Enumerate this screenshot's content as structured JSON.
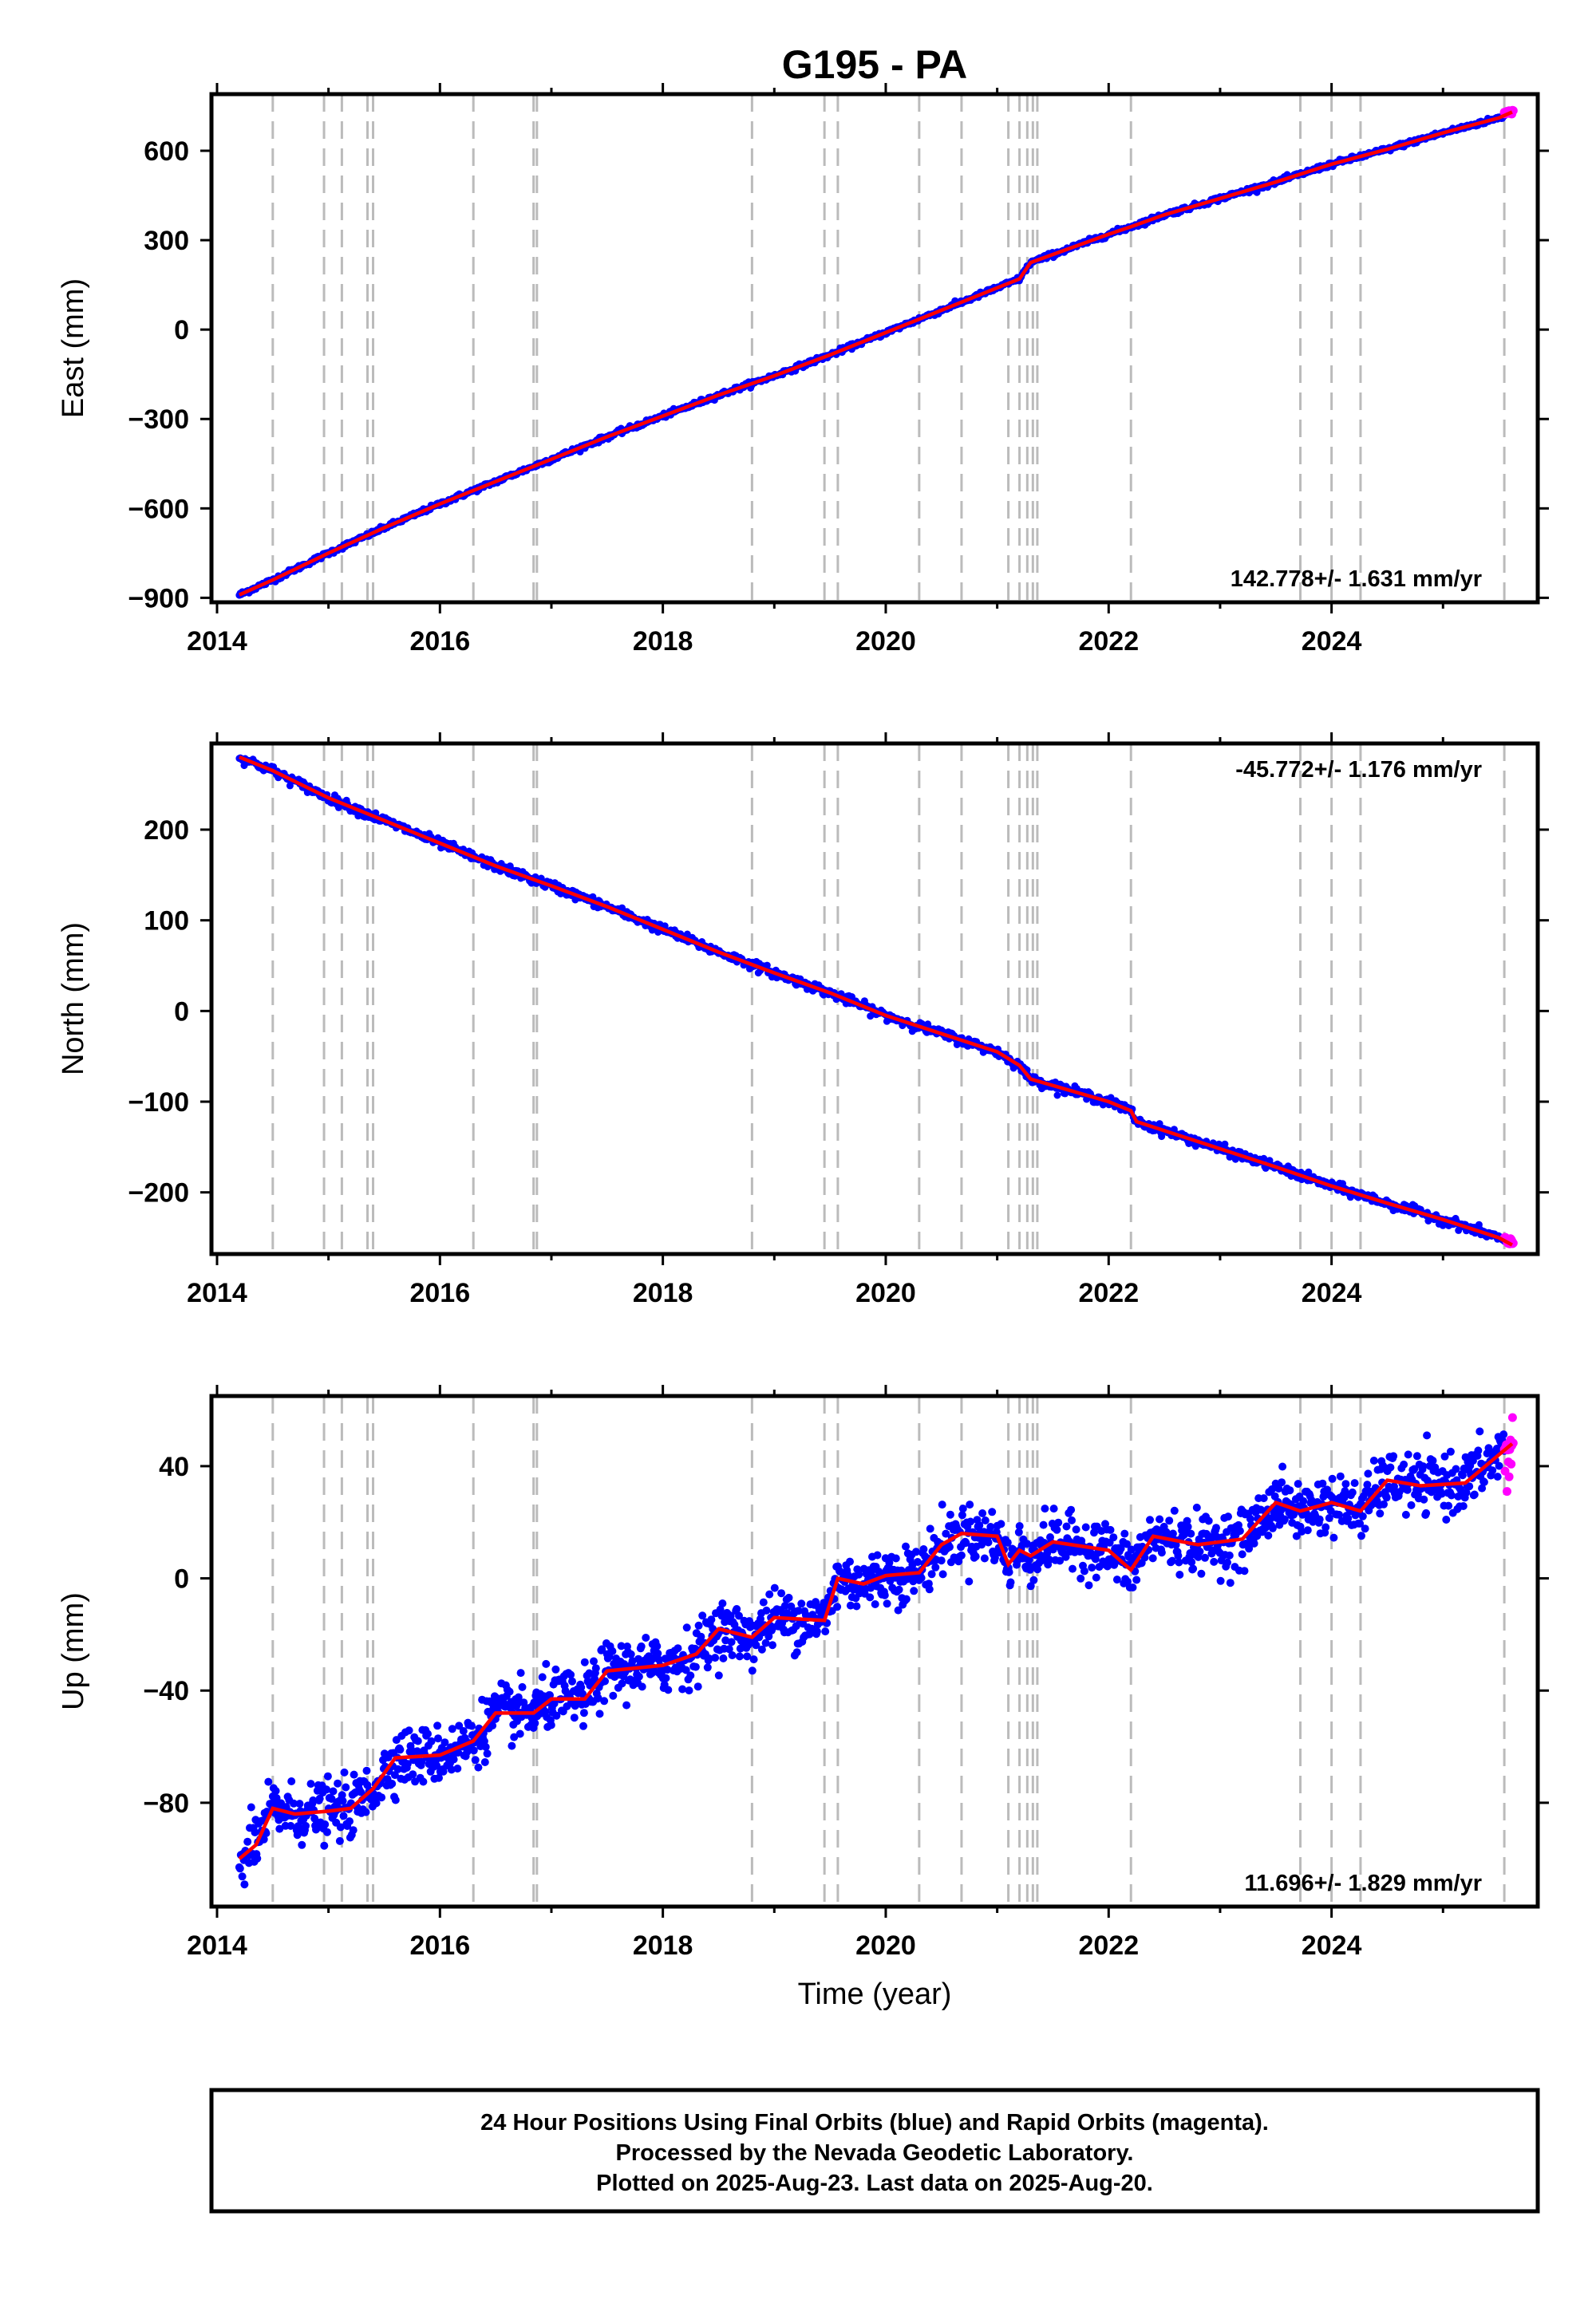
{
  "title": "G195 - PA",
  "xlabel": "Time (year)",
  "footer": {
    "line1": "24 Hour Positions Using Final Orbits (blue) and Rapid Orbits (magenta).",
    "line2": "Processed by the Nevada Geodetic Laboratory.",
    "line3": "Plotted on 2025-Aug-23. Last data on 2025-Aug-20."
  },
  "colors": {
    "final": "#0000ff",
    "rapid": "#ff00ff",
    "model": "#ff0000",
    "event_lines": "#bbbbbb",
    "frame": "#000000"
  },
  "chart_data": [
    {
      "type": "scatter",
      "name": "east",
      "ylabel": "East (mm)",
      "rate_label": "142.778+/- 1.631 mm/yr",
      "xlim": [
        2013.95,
        2025.85
      ],
      "ylim": [
        -915,
        790
      ],
      "xticks": [
        2014,
        2016,
        2018,
        2020,
        2022,
        2024
      ],
      "yticks": [
        -900,
        -600,
        -300,
        0,
        300,
        600
      ],
      "ytick_labels": [
        "−900",
        "−600",
        "−300",
        "0",
        "300",
        "600"
      ],
      "event_lines": [
        2014.5,
        2014.96,
        2015.12,
        2015.35,
        2015.4,
        2016.3,
        2016.84,
        2016.87,
        2018.8,
        2019.45,
        2019.57,
        2020.3,
        2020.68,
        2021.1,
        2021.2,
        2021.27,
        2021.32,
        2021.36,
        2022.2,
        2023.72,
        2024.0,
        2024.26,
        2025.55
      ],
      "model": {
        "x": [
          2014.2,
          2014.5,
          2015.0,
          2015.5,
          2016.0,
          2016.5,
          2017.0,
          2017.5,
          2018.0,
          2018.5,
          2019.0,
          2019.5,
          2020.0,
          2020.5,
          2021.0,
          2021.2,
          2021.3,
          2022.0,
          2022.2,
          2022.5,
          2023.0,
          2023.5,
          2024.0,
          2024.5,
          2025.0,
          2025.5,
          2025.62
        ],
        "y": [
          -890,
          -840,
          -750,
          -665,
          -585,
          -510,
          -435,
          -360,
          -290,
          -220,
          -155,
          -85,
          -10,
          65,
          140,
          170,
          225,
          320,
          345,
          385,
          440,
          495,
          555,
          605,
          660,
          710,
          730
        ]
      },
      "noise_sd": 4,
      "rapid": {
        "x0": 2025.55,
        "x1": 2025.63,
        "y": 730,
        "spread": 5
      }
    },
    {
      "type": "scatter",
      "name": "north",
      "ylabel": "North (mm)",
      "rate_label": "-45.772+/- 1.176 mm/yr",
      "xlim": [
        2013.95,
        2025.85
      ],
      "ylim": [
        -268,
        295
      ],
      "xticks": [
        2014,
        2016,
        2018,
        2020,
        2022,
        2024
      ],
      "yticks": [
        -200,
        -100,
        0,
        100,
        200
      ],
      "ytick_labels": [
        "−200",
        "−100",
        "0",
        "100",
        "200"
      ],
      "event_lines": [
        2014.5,
        2014.96,
        2015.12,
        2015.35,
        2015.4,
        2016.3,
        2016.84,
        2016.87,
        2018.8,
        2019.45,
        2019.57,
        2020.3,
        2020.68,
        2021.1,
        2021.2,
        2021.27,
        2021.32,
        2021.36,
        2022.2,
        2023.72,
        2024.0,
        2024.26,
        2025.55
      ],
      "model": {
        "x": [
          2014.2,
          2014.5,
          2015.0,
          2015.5,
          2016.0,
          2016.5,
          2017.0,
          2017.5,
          2018.0,
          2018.5,
          2019.0,
          2019.5,
          2020.0,
          2020.5,
          2021.0,
          2021.2,
          2021.3,
          2022.0,
          2022.2,
          2022.25,
          2022.5,
          2023.0,
          2023.5,
          2024.0,
          2024.5,
          2025.0,
          2025.5,
          2025.62
        ],
        "y": [
          280,
          265,
          235,
          210,
          185,
          160,
          138,
          115,
          90,
          65,
          42,
          20,
          -5,
          -25,
          -45,
          -60,
          -75,
          -100,
          -110,
          -122,
          -132,
          -152,
          -172,
          -193,
          -212,
          -230,
          -250,
          -258
        ]
      },
      "noise_sd": 2.5,
      "rapid": {
        "x0": 2025.55,
        "x1": 2025.63,
        "y": -255,
        "spread": 3
      }
    },
    {
      "type": "scatter",
      "name": "up",
      "ylabel": "Up (mm)",
      "rate_label": "11.696+/- 1.829 mm/yr",
      "xlim": [
        2013.95,
        2025.85
      ],
      "ylim": [
        -117,
        65
      ],
      "xticks": [
        2014,
        2016,
        2018,
        2020,
        2022,
        2024
      ],
      "yticks": [
        -80,
        -40,
        0,
        40
      ],
      "ytick_labels": [
        "−80",
        "−40",
        "0",
        "40"
      ],
      "event_lines": [
        2014.5,
        2014.96,
        2015.12,
        2015.35,
        2015.4,
        2016.3,
        2016.84,
        2016.87,
        2018.8,
        2019.45,
        2019.57,
        2020.3,
        2020.68,
        2021.1,
        2021.2,
        2021.27,
        2021.32,
        2021.36,
        2022.2,
        2023.72,
        2024.0,
        2024.26,
        2025.55
      ],
      "model": {
        "x": [
          2014.2,
          2014.35,
          2014.5,
          2014.7,
          2015.0,
          2015.2,
          2015.4,
          2015.6,
          2016.0,
          2016.3,
          2016.5,
          2016.84,
          2017.0,
          2017.3,
          2017.5,
          2018.0,
          2018.3,
          2018.5,
          2018.8,
          2019.0,
          2019.45,
          2019.57,
          2019.8,
          2020.0,
          2020.3,
          2020.5,
          2020.68,
          2021.0,
          2021.1,
          2021.2,
          2021.3,
          2021.5,
          2022.0,
          2022.2,
          2022.4,
          2022.8,
          2023.2,
          2023.5,
          2023.72,
          2024.0,
          2024.26,
          2024.5,
          2024.8,
          2025.2,
          2025.5,
          2025.62
        ],
        "y": [
          -100,
          -95,
          -82,
          -84,
          -83,
          -82,
          -75,
          -64,
          -63,
          -58,
          -48,
          -48,
          -43,
          -43,
          -33,
          -31,
          -27,
          -18,
          -21,
          -14,
          -15,
          0,
          -2,
          1,
          2,
          12,
          16,
          15,
          5,
          10,
          8,
          13,
          10,
          3,
          15,
          12,
          14,
          27,
          24,
          27,
          24,
          35,
          33,
          34,
          44,
          48
        ]
      },
      "noise_sd": 5,
      "rapid": {
        "x0": 2025.55,
        "x1": 2025.63,
        "y": 45,
        "spread": 7
      }
    }
  ]
}
